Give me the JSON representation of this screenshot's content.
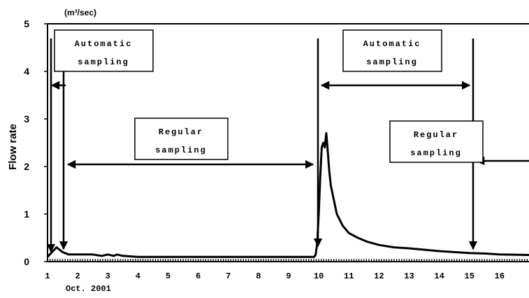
{
  "chart_data": {
    "type": "line",
    "unit_label": "(m³/sec)",
    "ylabel": "Flow rate",
    "xlabel": "Oct. 2001",
    "ylim": [
      0,
      5
    ],
    "xlim": [
      1,
      17
    ],
    "y_ticks": [
      "0",
      "1",
      "2",
      "3",
      "4",
      "5"
    ],
    "x_ticks": [
      "1",
      "2",
      "3",
      "4",
      "5",
      "6",
      "7",
      "8",
      "9",
      "10",
      "11",
      "12",
      "13",
      "14",
      "15",
      "16"
    ],
    "series": [
      {
        "x": [
          1.0,
          1.15,
          1.3,
          1.4,
          1.5,
          1.7,
          2.0,
          2.5,
          2.8,
          3.0,
          3.2,
          3.3,
          3.5,
          4.0,
          5.0,
          6.0,
          7.0,
          8.0,
          9.0,
          9.5,
          9.8,
          9.85,
          9.9,
          9.95,
          10.0,
          10.05,
          10.1,
          10.15,
          10.2,
          10.25,
          10.3,
          10.35,
          10.4,
          10.5,
          10.6,
          10.8,
          11.0,
          11.3,
          11.6,
          12.0,
          12.5,
          13.0,
          13.5,
          14.0,
          14.5,
          15.0,
          15.5,
          16.0,
          17.0
        ],
        "y": [
          0.1,
          0.2,
          0.3,
          0.25,
          0.2,
          0.15,
          0.15,
          0.15,
          0.12,
          0.15,
          0.12,
          0.15,
          0.12,
          0.1,
          0.1,
          0.1,
          0.1,
          0.1,
          0.1,
          0.1,
          0.1,
          0.1,
          0.15,
          0.4,
          1.0,
          1.8,
          2.4,
          2.5,
          2.4,
          2.7,
          2.3,
          1.9,
          1.6,
          1.3,
          1.0,
          0.75,
          0.6,
          0.5,
          0.42,
          0.35,
          0.3,
          0.28,
          0.25,
          0.22,
          0.2,
          0.18,
          0.17,
          0.15,
          0.14
        ]
      }
    ],
    "annotations": [
      {
        "lines": [
          "Automatic",
          "sampling"
        ]
      },
      {
        "lines": [
          "Regular",
          "sampling"
        ]
      },
      {
        "lines": [
          "Automatic",
          "sampling"
        ]
      },
      {
        "lines": [
          "Regular",
          "sampling"
        ]
      }
    ],
    "grid": false,
    "legend": "none",
    "line_color": "#000000"
  }
}
